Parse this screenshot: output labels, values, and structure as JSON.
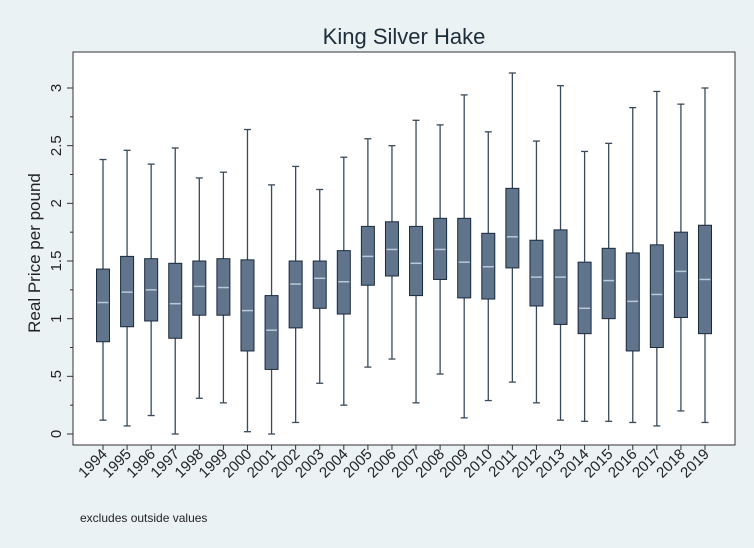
{
  "chart_data": {
    "type": "boxplot",
    "title": "King Silver Hake",
    "xlabel": "",
    "ylabel": "Real Price per pound",
    "note": "excludes outside values",
    "ylim": [
      0,
      3.2
    ],
    "yticks": [
      {
        "value": 0,
        "label": "0"
      },
      {
        "value": 0.5,
        "label": ".5"
      },
      {
        "value": 1,
        "label": "1"
      },
      {
        "value": 1.5,
        "label": "1.5"
      },
      {
        "value": 2,
        "label": "2"
      },
      {
        "value": 2.5,
        "label": "2.5"
      },
      {
        "value": 3,
        "label": "3"
      }
    ],
    "grid": false,
    "colors": {
      "background": "#eaf2f3",
      "plot_area": "#ffffff",
      "box_fill": "#60748c",
      "box_stroke": "#1a2a3c",
      "median": "#b8cad8",
      "whisker": "#3a4a5a",
      "axis": "#333333"
    },
    "categories": [
      "1994",
      "1995",
      "1996",
      "1997",
      "1998",
      "1999",
      "2000",
      "2001",
      "2002",
      "2003",
      "2004",
      "2005",
      "2006",
      "2007",
      "2008",
      "2009",
      "2010",
      "2011",
      "2012",
      "2013",
      "2014",
      "2015",
      "2016",
      "2017",
      "2018",
      "2019"
    ],
    "boxes": [
      {
        "min": 0.12,
        "q1": 0.8,
        "median": 1.14,
        "q3": 1.43,
        "max": 2.38
      },
      {
        "min": 0.07,
        "q1": 0.93,
        "median": 1.23,
        "q3": 1.54,
        "max": 2.46
      },
      {
        "min": 0.16,
        "q1": 0.98,
        "median": 1.25,
        "q3": 1.52,
        "max": 2.34
      },
      {
        "min": 0.0,
        "q1": 0.83,
        "median": 1.13,
        "q3": 1.48,
        "max": 2.48
      },
      {
        "min": 0.31,
        "q1": 1.03,
        "median": 1.28,
        "q3": 1.5,
        "max": 2.22
      },
      {
        "min": 0.27,
        "q1": 1.03,
        "median": 1.27,
        "q3": 1.52,
        "max": 2.27
      },
      {
        "min": 0.02,
        "q1": 0.72,
        "median": 1.07,
        "q3": 1.51,
        "max": 2.64
      },
      {
        "min": 0.0,
        "q1": 0.56,
        "median": 0.9,
        "q3": 1.2,
        "max": 2.16
      },
      {
        "min": 0.1,
        "q1": 0.92,
        "median": 1.3,
        "q3": 1.5,
        "max": 2.32
      },
      {
        "min": 0.44,
        "q1": 1.09,
        "median": 1.35,
        "q3": 1.5,
        "max": 2.12
      },
      {
        "min": 0.25,
        "q1": 1.04,
        "median": 1.32,
        "q3": 1.59,
        "max": 2.4
      },
      {
        "min": 0.58,
        "q1": 1.29,
        "median": 1.54,
        "q3": 1.8,
        "max": 2.56
      },
      {
        "min": 0.65,
        "q1": 1.37,
        "median": 1.6,
        "q3": 1.84,
        "max": 2.5
      },
      {
        "min": 0.27,
        "q1": 1.2,
        "median": 1.48,
        "q3": 1.8,
        "max": 2.72
      },
      {
        "min": 0.52,
        "q1": 1.34,
        "median": 1.6,
        "q3": 1.87,
        "max": 2.68
      },
      {
        "min": 0.14,
        "q1": 1.18,
        "median": 1.49,
        "q3": 1.87,
        "max": 2.94
      },
      {
        "min": 0.29,
        "q1": 1.17,
        "median": 1.45,
        "q3": 1.74,
        "max": 2.62
      },
      {
        "min": 0.45,
        "q1": 1.44,
        "median": 1.71,
        "q3": 2.13,
        "max": 3.13
      },
      {
        "min": 0.27,
        "q1": 1.11,
        "median": 1.36,
        "q3": 1.68,
        "max": 2.54
      },
      {
        "min": 0.12,
        "q1": 0.95,
        "median": 1.36,
        "q3": 1.77,
        "max": 3.02
      },
      {
        "min": 0.11,
        "q1": 0.87,
        "median": 1.09,
        "q3": 1.49,
        "max": 2.45
      },
      {
        "min": 0.11,
        "q1": 1.0,
        "median": 1.33,
        "q3": 1.61,
        "max": 2.52
      },
      {
        "min": 0.1,
        "q1": 0.72,
        "median": 1.15,
        "q3": 1.57,
        "max": 2.83
      },
      {
        "min": 0.07,
        "q1": 0.75,
        "median": 1.21,
        "q3": 1.64,
        "max": 2.97
      },
      {
        "min": 0.2,
        "q1": 1.01,
        "median": 1.41,
        "q3": 1.75,
        "max": 2.86
      },
      {
        "min": 0.1,
        "q1": 0.87,
        "median": 1.34,
        "q3": 1.81,
        "max": 3.0
      }
    ]
  }
}
